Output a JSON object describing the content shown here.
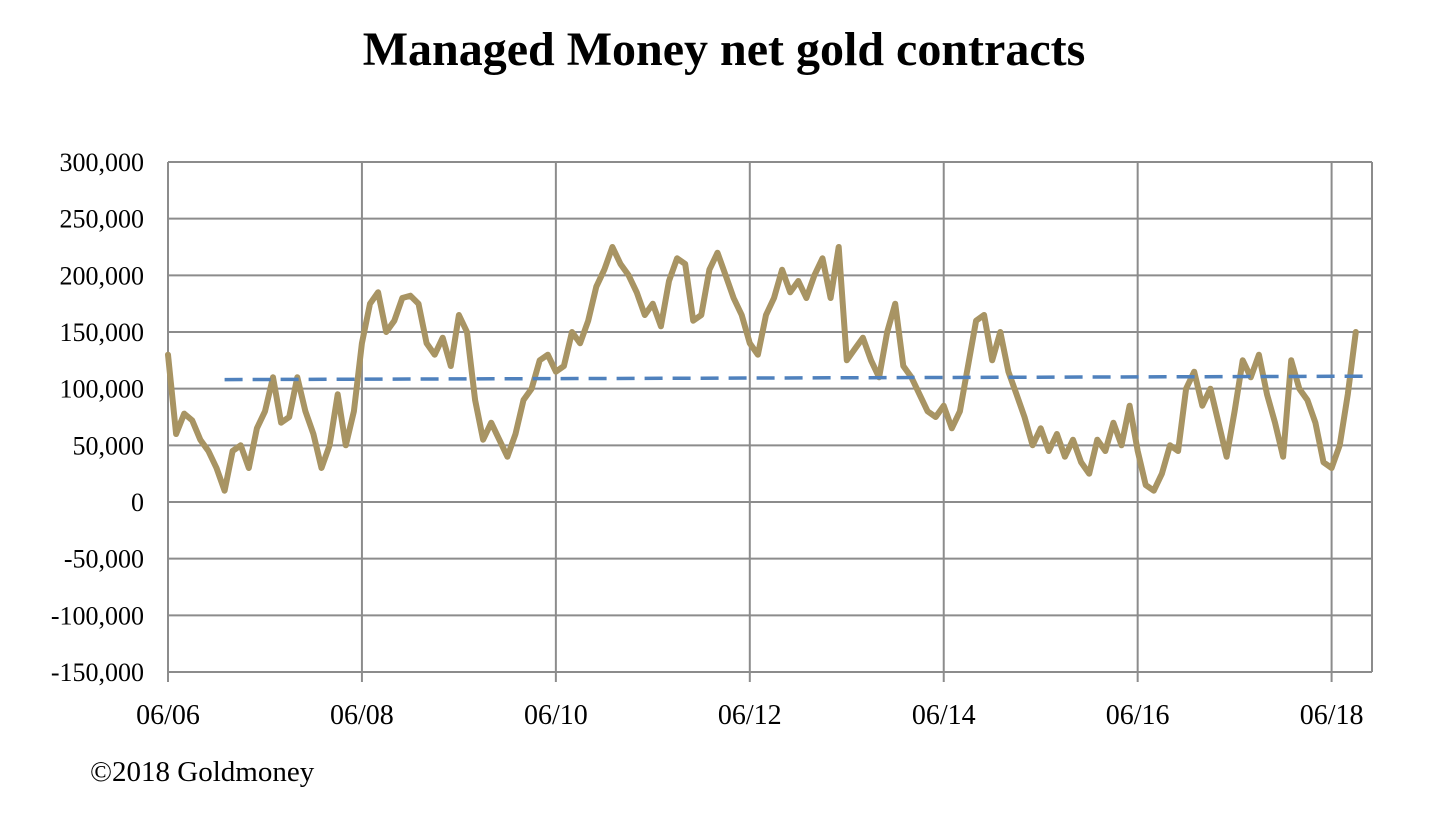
{
  "chart_data": {
    "type": "line",
    "title": "Managed Money net gold contracts",
    "xlabel": "",
    "ylabel": "",
    "x_tick_labels": [
      "06/06",
      "06/08",
      "06/10",
      "06/12",
      "06/14",
      "06/16",
      "06/18"
    ],
    "x_tick_dates": [
      "2006-06",
      "2008-06",
      "2010-06",
      "2012-06",
      "2014-06",
      "2016-06",
      "2018-06"
    ],
    "y_tick_labels": [
      "300,000",
      "250,000",
      "200,000",
      "150,000",
      "100,000",
      "50,000",
      "0",
      "-50,000",
      "-100,000",
      "-150,000"
    ],
    "ylim": [
      -150000,
      300000
    ],
    "xlim": [
      "2006-06",
      "2018-11"
    ],
    "grid": true,
    "legend": "none",
    "series": [
      {
        "color": "#A89463",
        "style": "solid",
        "points": [
          [
            "2006-06",
            130000
          ],
          [
            "2006-07",
            60000
          ],
          [
            "2006-08",
            78000
          ],
          [
            "2006-09",
            72000
          ],
          [
            "2006-10",
            55000
          ],
          [
            "2006-11",
            45000
          ],
          [
            "2006-12",
            30000
          ],
          [
            "2007-01",
            10000
          ],
          [
            "2007-02",
            45000
          ],
          [
            "2007-03",
            50000
          ],
          [
            "2007-04",
            30000
          ],
          [
            "2007-05",
            65000
          ],
          [
            "2007-06",
            80000
          ],
          [
            "2007-07",
            110000
          ],
          [
            "2007-08",
            70000
          ],
          [
            "2007-09",
            75000
          ],
          [
            "2007-10",
            110000
          ],
          [
            "2007-11",
            80000
          ],
          [
            "2007-12",
            60000
          ],
          [
            "2008-01",
            30000
          ],
          [
            "2008-02",
            50000
          ],
          [
            "2008-03",
            95000
          ],
          [
            "2008-04",
            50000
          ],
          [
            "2008-05",
            80000
          ],
          [
            "2008-06",
            140000
          ],
          [
            "2008-07",
            175000
          ],
          [
            "2008-08",
            185000
          ],
          [
            "2008-09",
            150000
          ],
          [
            "2008-10",
            160000
          ],
          [
            "2008-11",
            180000
          ],
          [
            "2008-12",
            182000
          ],
          [
            "2009-01",
            175000
          ],
          [
            "2009-02",
            140000
          ],
          [
            "2009-03",
            130000
          ],
          [
            "2009-04",
            145000
          ],
          [
            "2009-05",
            120000
          ],
          [
            "2009-06",
            165000
          ],
          [
            "2009-07",
            150000
          ],
          [
            "2009-08",
            90000
          ],
          [
            "2009-09",
            55000
          ],
          [
            "2009-10",
            70000
          ],
          [
            "2009-11",
            55000
          ],
          [
            "2009-12",
            40000
          ],
          [
            "2010-01",
            60000
          ],
          [
            "2010-02",
            90000
          ],
          [
            "2010-03",
            100000
          ],
          [
            "2010-04",
            125000
          ],
          [
            "2010-05",
            130000
          ],
          [
            "2010-06",
            115000
          ],
          [
            "2010-07",
            120000
          ],
          [
            "2010-08",
            150000
          ],
          [
            "2010-09",
            140000
          ],
          [
            "2010-10",
            160000
          ],
          [
            "2010-11",
            190000
          ],
          [
            "2010-12",
            205000
          ],
          [
            "2011-01",
            225000
          ],
          [
            "2011-02",
            210000
          ],
          [
            "2011-03",
            200000
          ],
          [
            "2011-04",
            185000
          ],
          [
            "2011-05",
            165000
          ],
          [
            "2011-06",
            175000
          ],
          [
            "2011-07",
            155000
          ],
          [
            "2011-08",
            195000
          ],
          [
            "2011-09",
            215000
          ],
          [
            "2011-10",
            210000
          ],
          [
            "2011-11",
            160000
          ],
          [
            "2011-12",
            165000
          ],
          [
            "2012-01",
            205000
          ],
          [
            "2012-02",
            220000
          ],
          [
            "2012-03",
            200000
          ],
          [
            "2012-04",
            180000
          ],
          [
            "2012-05",
            165000
          ],
          [
            "2012-06",
            140000
          ],
          [
            "2012-07",
            130000
          ],
          [
            "2012-08",
            165000
          ],
          [
            "2012-09",
            180000
          ],
          [
            "2012-10",
            205000
          ],
          [
            "2012-11",
            185000
          ],
          [
            "2012-12",
            195000
          ],
          [
            "2013-01",
            180000
          ],
          [
            "2013-02",
            200000
          ],
          [
            "2013-03",
            215000
          ],
          [
            "2013-04",
            180000
          ],
          [
            "2013-05",
            225000
          ],
          [
            "2013-06",
            125000
          ],
          [
            "2013-07",
            135000
          ],
          [
            "2013-08",
            145000
          ],
          [
            "2013-09",
            125000
          ],
          [
            "2013-10",
            110000
          ],
          [
            "2013-11",
            150000
          ],
          [
            "2013-12",
            175000
          ],
          [
            "2014-01",
            120000
          ],
          [
            "2014-02",
            110000
          ],
          [
            "2014-03",
            95000
          ],
          [
            "2014-04",
            80000
          ],
          [
            "2014-05",
            75000
          ],
          [
            "2014-06",
            85000
          ],
          [
            "2014-07",
            65000
          ],
          [
            "2014-08",
            80000
          ],
          [
            "2014-09",
            120000
          ],
          [
            "2014-10",
            160000
          ],
          [
            "2014-11",
            165000
          ],
          [
            "2014-12",
            125000
          ],
          [
            "2015-01",
            150000
          ],
          [
            "2015-02",
            115000
          ],
          [
            "2015-03",
            95000
          ],
          [
            "2015-04",
            75000
          ],
          [
            "2015-05",
            50000
          ],
          [
            "2015-06",
            65000
          ],
          [
            "2015-07",
            45000
          ],
          [
            "2015-08",
            60000
          ],
          [
            "2015-09",
            40000
          ],
          [
            "2015-10",
            55000
          ],
          [
            "2015-11",
            35000
          ],
          [
            "2015-12",
            25000
          ],
          [
            "2016-01",
            55000
          ],
          [
            "2016-02",
            45000
          ],
          [
            "2016-03",
            70000
          ],
          [
            "2016-04",
            50000
          ],
          [
            "2016-05",
            85000
          ],
          [
            "2016-06",
            45000
          ],
          [
            "2016-07",
            15000
          ],
          [
            "2016-08",
            10000
          ],
          [
            "2016-09",
            25000
          ],
          [
            "2016-10",
            50000
          ],
          [
            "2016-11",
            45000
          ],
          [
            "2016-12",
            100000
          ],
          [
            "2017-01",
            115000
          ],
          [
            "2017-02",
            85000
          ],
          [
            "2017-03",
            100000
          ],
          [
            "2017-04",
            70000
          ],
          [
            "2017-05",
            40000
          ],
          [
            "2017-06",
            80000
          ],
          [
            "2017-07",
            125000
          ],
          [
            "2017-08",
            110000
          ],
          [
            "2017-09",
            130000
          ],
          [
            "2017-10",
            95000
          ],
          [
            "2017-11",
            70000
          ],
          [
            "2017-12",
            40000
          ],
          [
            "2018-01",
            125000
          ],
          [
            "2018-02",
            100000
          ],
          [
            "2018-03",
            90000
          ],
          [
            "2018-04",
            70000
          ],
          [
            "2018-05",
            35000
          ],
          [
            "2018-06",
            30000
          ],
          [
            "2018-07",
            50000
          ],
          [
            "2018-08",
            95000
          ],
          [
            "2018-09",
            150000
          ]
        ]
      },
      {
        "color": "#4F81BD",
        "style": "dashed",
        "points": [
          [
            "2007-01",
            108000
          ],
          [
            "2018-11",
            111000
          ]
        ]
      }
    ]
  },
  "footer": {
    "copyright": "©2018 Goldmoney"
  }
}
